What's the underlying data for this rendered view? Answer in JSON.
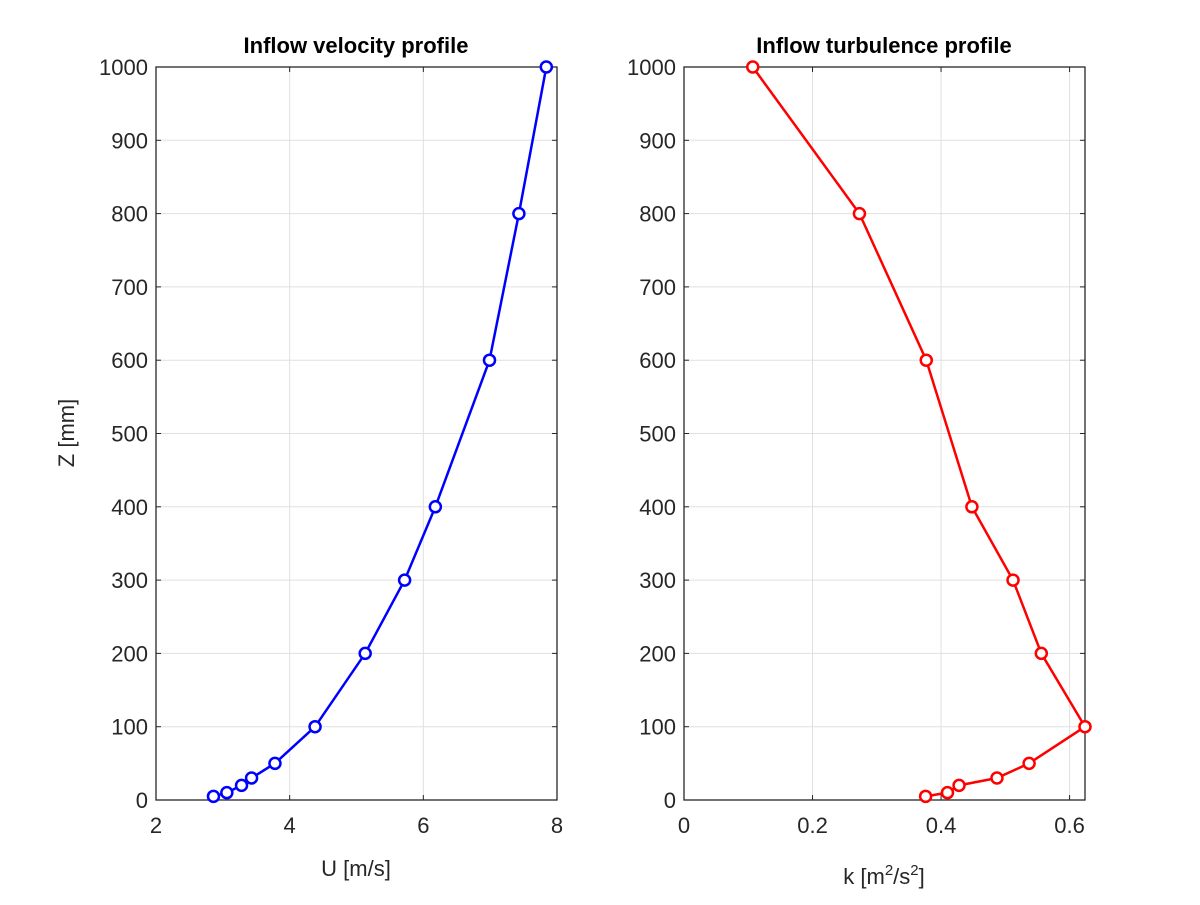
{
  "chart_data": [
    {
      "type": "line",
      "title": "Inflow velocity profile",
      "xlabel": "U [m/s]",
      "ylabel": "Z [mm]",
      "xlim": [
        2,
        8
      ],
      "ylim": [
        0,
        1000
      ],
      "xticks": [
        "2",
        "4",
        "6",
        "8"
      ],
      "yticks": [
        "0",
        "100",
        "200",
        "300",
        "400",
        "500",
        "600",
        "700",
        "800",
        "900",
        "1000"
      ],
      "grid": true,
      "color": "#0000ff",
      "marker": "circle",
      "x": [
        2.86,
        3.06,
        3.28,
        3.43,
        3.78,
        4.38,
        5.13,
        5.72,
        6.18,
        6.99,
        7.43,
        7.84
      ],
      "y": [
        5,
        10,
        20,
        30,
        50,
        100,
        200,
        300,
        400,
        600,
        800,
        1000
      ]
    },
    {
      "type": "line",
      "title": "Inflow turbulence profile",
      "xlabel": "k [m2/s2]",
      "xlabel_parts": [
        "k [m",
        "2",
        "/s",
        "2",
        "]"
      ],
      "ylabel": "",
      "xlim": [
        0,
        0.624
      ],
      "ylim": [
        0,
        1000
      ],
      "xticks": [
        "0",
        "0.2",
        "0.4",
        "0.6"
      ],
      "yticks": [
        "0",
        "100",
        "200",
        "300",
        "400",
        "500",
        "600",
        "700",
        "800",
        "900",
        "1000"
      ],
      "grid": true,
      "color": "#ff0000",
      "marker": "circle",
      "x": [
        0.376,
        0.41,
        0.428,
        0.487,
        0.537,
        0.624,
        0.556,
        0.512,
        0.448,
        0.377,
        0.273,
        0.107
      ],
      "y": [
        5,
        10,
        20,
        30,
        50,
        100,
        200,
        300,
        400,
        600,
        800,
        1000
      ]
    }
  ]
}
